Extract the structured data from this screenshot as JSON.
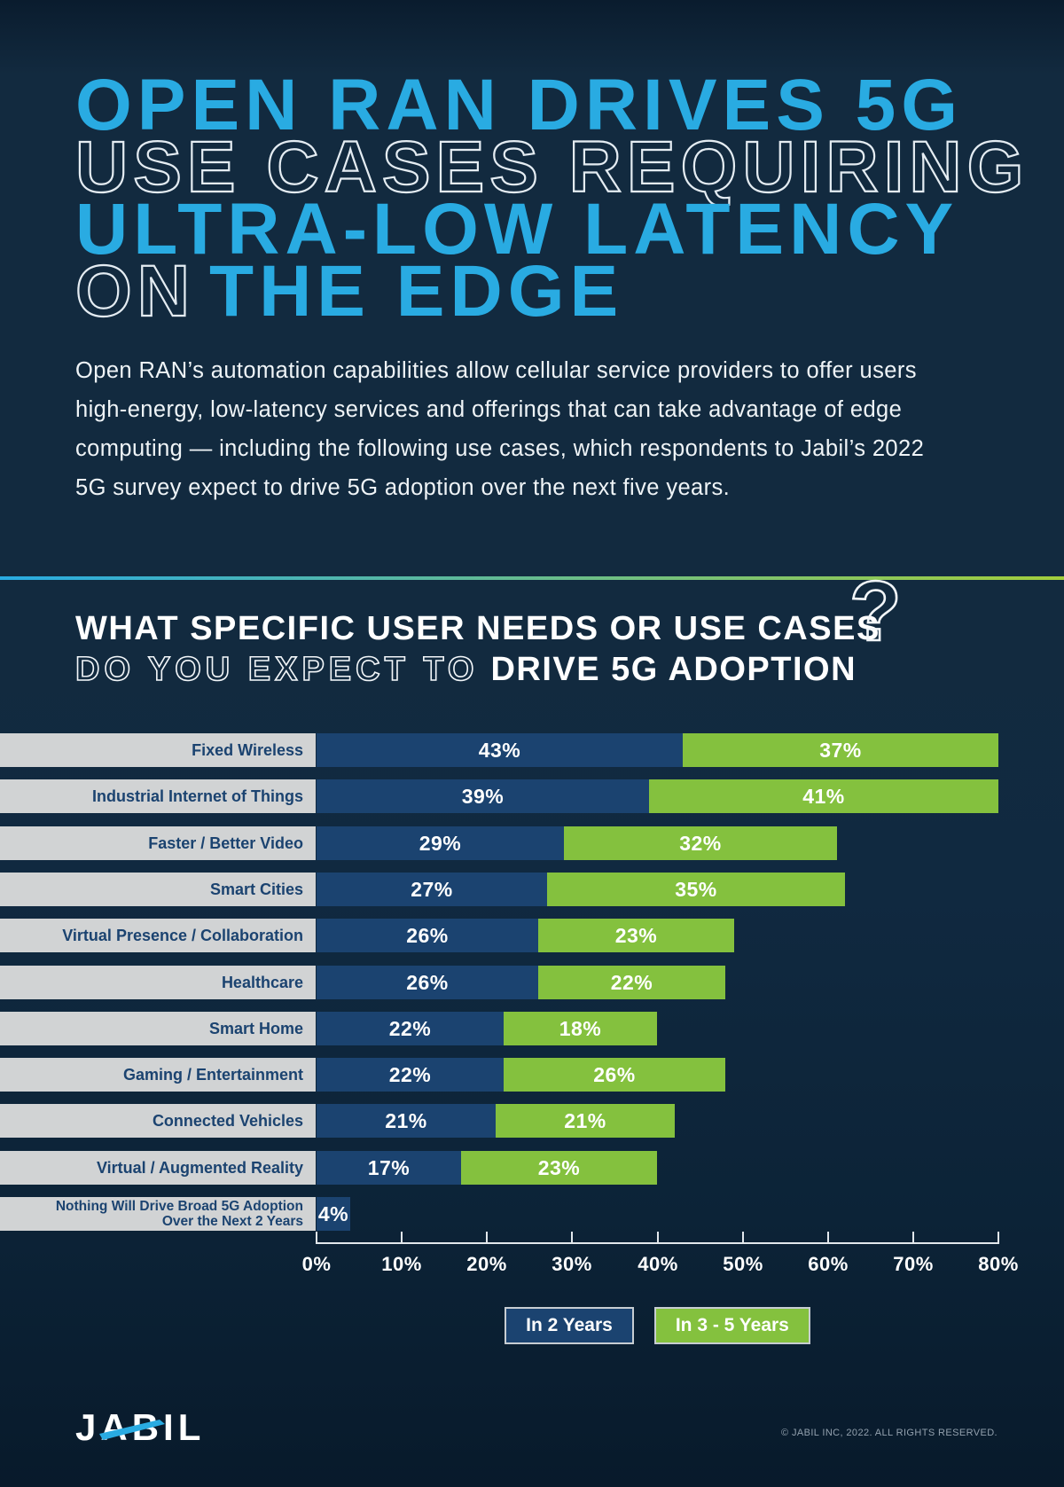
{
  "title": {
    "line1": "OPEN RAN DRIVES 5G",
    "line2": "USE CASES REQUIRING",
    "line3": "ULTRA-LOW LATENCY",
    "line4_outline": "ON",
    "line4_solid": "THE EDGE"
  },
  "intro": "Open RAN’s automation capabilities allow cellular service providers to offer users high-energy, low-latency services and offerings that can take advantage of edge computing — including the following use cases, which respondents to Jabil’s 2022 5G survey expect to drive 5G adoption over the next five years.",
  "question": {
    "line1": "WHAT SPECIFIC USER NEEDS OR USE CASES",
    "line2_outline": "DO YOU EXPECT TO",
    "line2_solid": "DRIVE 5G ADOPTION",
    "mark_icon": "?"
  },
  "chart_data": {
    "type": "bar",
    "orientation": "horizontal",
    "stacked": true,
    "unit": "%",
    "xlim": [
      0,
      80
    ],
    "x_ticks": [
      "0%",
      "10%",
      "20%",
      "30%",
      "40%",
      "50%",
      "60%",
      "70%",
      "80%"
    ],
    "grid": false,
    "legend_position": "bottom",
    "categories": [
      "Fixed Wireless",
      "Industrial Internet of Things",
      "Faster / Better Video",
      "Smart Cities",
      "Virtual Presence / Collaboration",
      "Healthcare",
      "Smart Home",
      "Gaming / Entertainment",
      "Connected Vehicles",
      "Virtual / Augmented Reality",
      "Nothing Will Drive Broad 5G Adoption\nOver the Next 2 Years"
    ],
    "series": [
      {
        "name": "In 2 Years",
        "color": "#1B4370",
        "values": [
          43,
          39,
          29,
          27,
          26,
          26,
          22,
          22,
          21,
          17,
          4
        ]
      },
      {
        "name": "In 3 - 5 Years",
        "color": "#84C13E",
        "values": [
          37,
          41,
          32,
          35,
          23,
          22,
          18,
          26,
          21,
          23,
          null
        ]
      }
    ]
  },
  "footer": {
    "logo_text": "JABIL",
    "copyright": "© JABIL INC, 2022. ALL RIGHTS RESERVED."
  },
  "colors": {
    "accent_cyan": "#29ABE2",
    "bar_navy": "#1B4370",
    "bar_green": "#84C13E",
    "label_bg": "#D1D3D4",
    "divider_left": "#29ABE2",
    "divider_right": "#A3CE3C"
  }
}
